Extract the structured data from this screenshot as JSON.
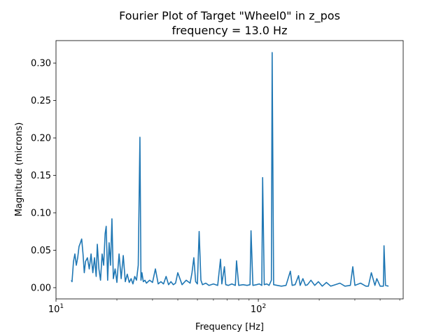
{
  "chart_data": {
    "type": "line",
    "title": "Fourier Plot of Target \"Wheel0\" in z_pos",
    "subtitle": "frequency = 13.0 Hz",
    "xlabel": "Frequency [Hz]",
    "ylabel": "Magnitude (microns)",
    "xscale": "log",
    "xlim": [
      10,
      520
    ],
    "ylim": [
      -0.015,
      0.33
    ],
    "x_major_ticks": [
      {
        "value": 10,
        "base": "10",
        "exp": "1"
      },
      {
        "value": 100,
        "base": "10",
        "exp": "2"
      }
    ],
    "y_ticks": [
      {
        "value": 0.0,
        "label": "0.00"
      },
      {
        "value": 0.05,
        "label": "0.05"
      },
      {
        "value": 0.1,
        "label": "0.10"
      },
      {
        "value": 0.15,
        "label": "0.15"
      },
      {
        "value": 0.2,
        "label": "0.20"
      },
      {
        "value": 0.25,
        "label": "0.25"
      },
      {
        "value": 0.3,
        "label": "0.30"
      }
    ],
    "grid": false,
    "series_color": "#1f77b4",
    "x": [
      11.9,
      12.0,
      12.2,
      12.4,
      12.6,
      12.8,
      13.0,
      13.2,
      13.4,
      13.6,
      13.8,
      14.0,
      14.3,
      14.6,
      14.9,
      15.2,
      15.5,
      15.8,
      16.0,
      16.3,
      16.6,
      16.9,
      17.2,
      17.5,
      17.7,
      18.0,
      18.3,
      18.6,
      18.9,
      19.2,
      19.6,
      20.0,
      20.5,
      21.0,
      21.5,
      22.0,
      22.5,
      23.0,
      23.5,
      24.0,
      24.5,
      25.0,
      25.5,
      26.0,
      26.3,
      26.6,
      27.0,
      27.5,
      28.0,
      29.0,
      30.0,
      31.0,
      32.0,
      33.0,
      34.0,
      35.0,
      36.0,
      37.0,
      38.0,
      39.0,
      40.0,
      42.0,
      44.0,
      46.0,
      47.0,
      48.0,
      49.0,
      50.0,
      51.0,
      52.0,
      53.0,
      55.0,
      57.0,
      60.0,
      63.0,
      65.0,
      66.0,
      68.0,
      69.0,
      71.0,
      74.0,
      77.0,
      78.0,
      80.0,
      84.0,
      88.0,
      91.0,
      92.0,
      94.0,
      98.0,
      101.0,
      104.0,
      105.0,
      107.0,
      110.0,
      113.0,
      116.0,
      117.0,
      119.0,
      124.0,
      130.0,
      137.0,
      144.0,
      147.0,
      152.0,
      158.0,
      161.0,
      166.0,
      171.0,
      175.0,
      182.0,
      190.0,
      198.0,
      207.0,
      217.0,
      228.0,
      240.0,
      253.0,
      268.0,
      285.0,
      293.0,
      300.0,
      320.0,
      340.0,
      350.0,
      362.0,
      377.0,
      385.0,
      400.0,
      415.0,
      418.0,
      425.0,
      440.0
    ],
    "values": [
      0.01,
      0.008,
      0.035,
      0.045,
      0.03,
      0.04,
      0.055,
      0.06,
      0.065,
      0.045,
      0.02,
      0.035,
      0.04,
      0.025,
      0.045,
      0.02,
      0.04,
      0.015,
      0.058,
      0.025,
      0.01,
      0.045,
      0.03,
      0.072,
      0.082,
      0.01,
      0.06,
      0.03,
      0.092,
      0.012,
      0.025,
      0.007,
      0.045,
      0.012,
      0.043,
      0.008,
      0.018,
      0.007,
      0.012,
      0.005,
      0.015,
      0.01,
      0.03,
      0.201,
      0.01,
      0.02,
      0.008,
      0.01,
      0.006,
      0.01,
      0.007,
      0.025,
      0.005,
      0.008,
      0.005,
      0.015,
      0.004,
      0.008,
      0.004,
      0.006,
      0.02,
      0.004,
      0.01,
      0.006,
      0.02,
      0.04,
      0.008,
      0.005,
      0.075,
      0.01,
      0.004,
      0.006,
      0.003,
      0.005,
      0.003,
      0.038,
      0.005,
      0.028,
      0.004,
      0.003,
      0.005,
      0.003,
      0.036,
      0.003,
      0.004,
      0.003,
      0.004,
      0.076,
      0.003,
      0.004,
      0.005,
      0.003,
      0.147,
      0.004,
      0.005,
      0.003,
      0.01,
      0.314,
      0.004,
      0.003,
      0.002,
      0.003,
      0.022,
      0.003,
      0.004,
      0.016,
      0.003,
      0.012,
      0.003,
      0.004,
      0.01,
      0.003,
      0.008,
      0.002,
      0.007,
      0.002,
      0.004,
      0.006,
      0.002,
      0.003,
      0.028,
      0.003,
      0.006,
      0.002,
      0.002,
      0.02,
      0.003,
      0.012,
      0.002,
      0.002,
      0.056,
      0.003,
      0.002
    ]
  }
}
